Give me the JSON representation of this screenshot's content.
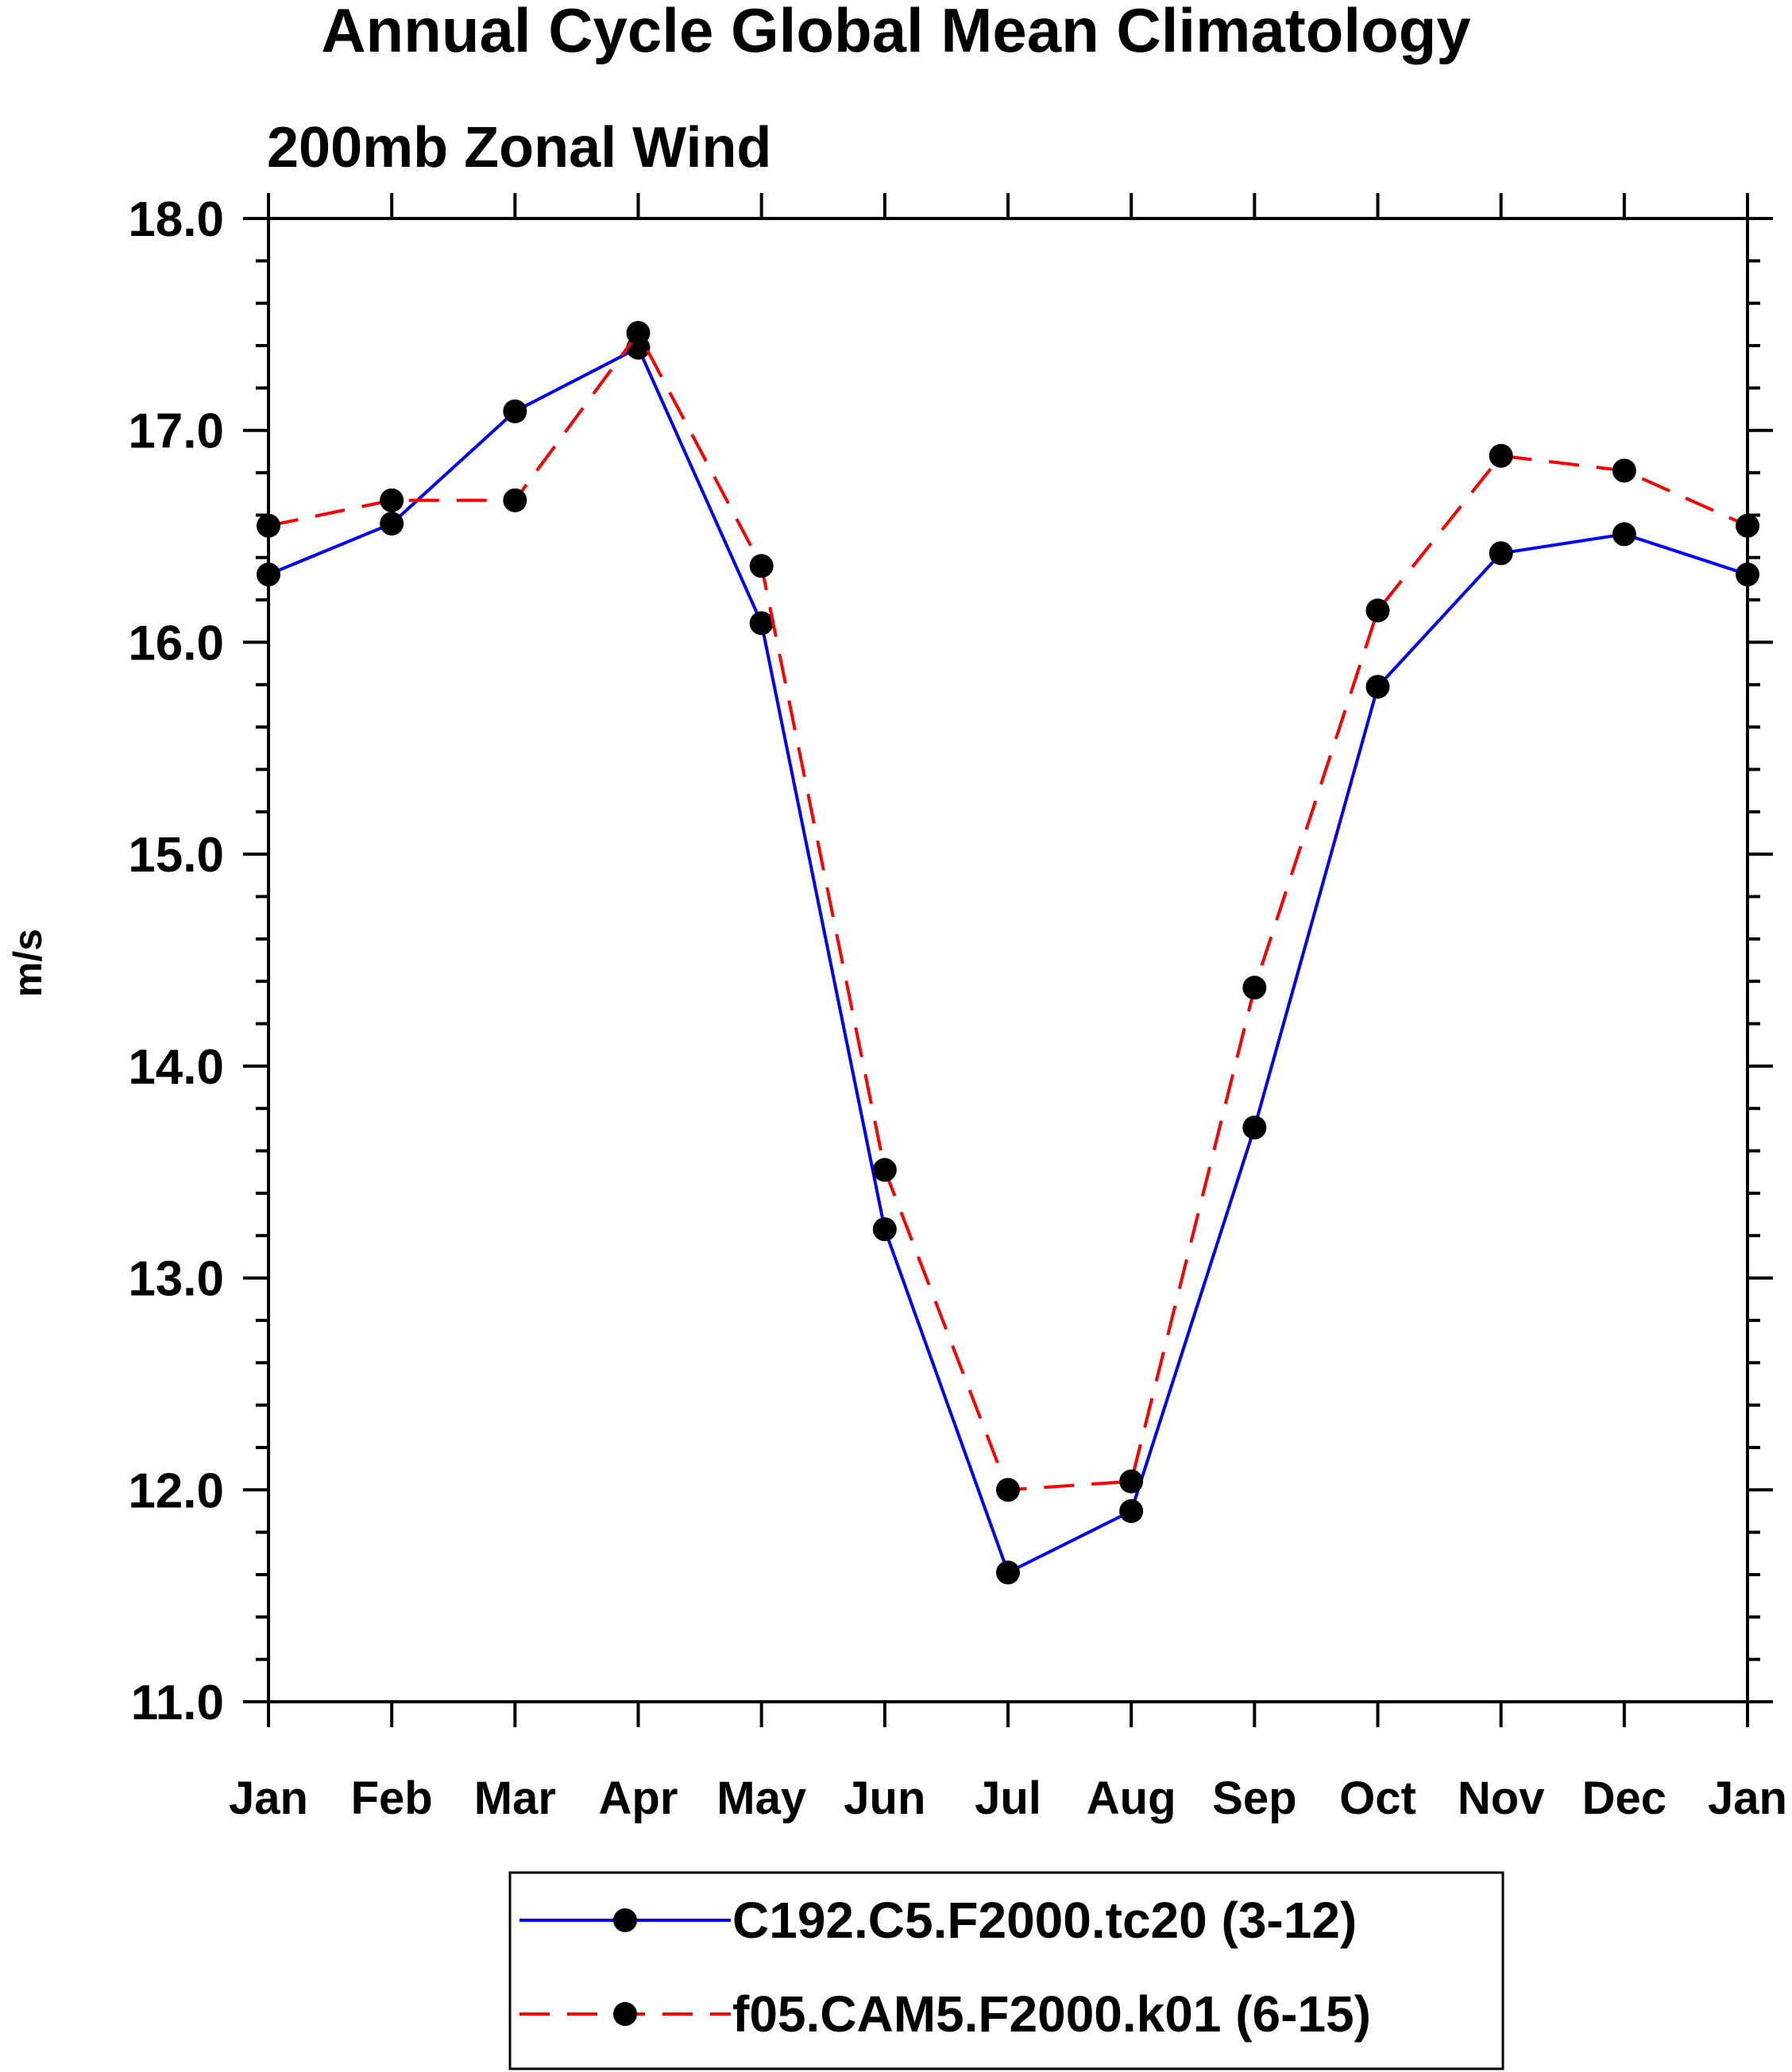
{
  "chart_data": {
    "type": "line",
    "title": "Annual Cycle Global Mean Climatology",
    "subtitle": "200mb Zonal Wind",
    "xlabel": "",
    "ylabel": "m/s",
    "categories": [
      "Jan",
      "Feb",
      "Mar",
      "Apr",
      "May",
      "Jun",
      "Jul",
      "Aug",
      "Sep",
      "Oct",
      "Nov",
      "Dec",
      "Jan"
    ],
    "ylim": [
      11.0,
      18.0
    ],
    "y_ticks": [
      11.0,
      12.0,
      13.0,
      14.0,
      15.0,
      16.0,
      17.0,
      18.0
    ],
    "y_tick_labels": [
      "11.0",
      "12.0",
      "13.0",
      "14.0",
      "15.0",
      "16.0",
      "17.0",
      "18.0"
    ],
    "y_minor_step": 0.2,
    "grid": false,
    "legend_position": "bottom-center",
    "series": [
      {
        "name": "C192.C5.F2000.tc20 (3-12)",
        "color": "#0000ff",
        "line_style": "solid",
        "marker": "filled-circle",
        "values": [
          16.32,
          16.56,
          17.09,
          17.39,
          16.09,
          13.23,
          11.61,
          11.9,
          13.71,
          15.79,
          16.42,
          16.51,
          16.32
        ]
      },
      {
        "name": "f05.CAM5.F2000.k01 (6-15)",
        "color": "#ff0000",
        "line_style": "dashed",
        "marker": "filled-circle",
        "values": [
          16.55,
          16.67,
          16.67,
          17.46,
          16.36,
          13.51,
          12.0,
          12.04,
          14.37,
          16.15,
          16.88,
          16.81,
          16.55
        ]
      }
    ]
  }
}
